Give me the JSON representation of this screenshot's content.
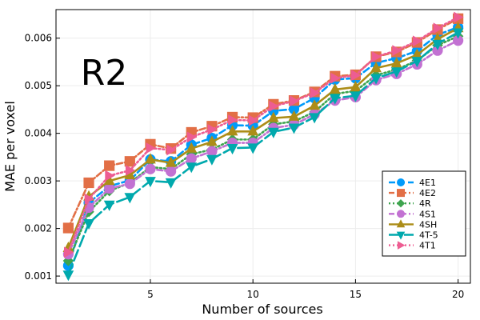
{
  "chart_data": {
    "type": "line",
    "title": "",
    "annotation": "R2",
    "xlabel": "Number of sources",
    "ylabel": "MAE per voxel",
    "xlim": [
      0.4,
      20.6
    ],
    "ylim": [
      0.00085,
      0.0066
    ],
    "x_ticks": [
      5,
      10,
      15,
      20
    ],
    "x_tick_labels": [
      "5",
      "10",
      "15",
      "20"
    ],
    "y_ticks": [
      0.001,
      0.002,
      0.003,
      0.004,
      0.005,
      0.006
    ],
    "y_tick_labels": [
      "0.001",
      "0.002",
      "0.003",
      "0.004",
      "0.005",
      "0.006"
    ],
    "grid": true,
    "legend_position": "bottom-right",
    "x": [
      1,
      2,
      3,
      4,
      5,
      6,
      7,
      8,
      9,
      10,
      11,
      12,
      13,
      14,
      15,
      16,
      17,
      18,
      19,
      20
    ],
    "series": [
      {
        "name": "4E1",
        "color": "#009AFA",
        "marker": "circle",
        "line_style": "dashed",
        "values": [
          0.00122,
          0.00254,
          0.00289,
          0.00301,
          0.00345,
          0.00341,
          0.00376,
          0.0039,
          0.00417,
          0.00416,
          0.00447,
          0.00451,
          0.00474,
          0.00513,
          0.00516,
          0.00548,
          0.00558,
          0.00573,
          0.00607,
          0.00623
        ]
      },
      {
        "name": "4E2",
        "color": "#E26F46",
        "marker": "square",
        "line_style": "dashdot",
        "values": [
          0.00201,
          0.00296,
          0.00332,
          0.00341,
          0.00377,
          0.00368,
          0.00402,
          0.00415,
          0.00434,
          0.00433,
          0.00461,
          0.00469,
          0.00487,
          0.0052,
          0.00523,
          0.00561,
          0.00571,
          0.00591,
          0.00618,
          0.00641
        ]
      },
      {
        "name": "4R",
        "color": "#3EA44E",
        "marker": "diamond",
        "line_style": "dotted",
        "values": [
          0.00132,
          0.00235,
          0.00279,
          0.00296,
          0.00329,
          0.00325,
          0.00356,
          0.00366,
          0.00387,
          0.00387,
          0.00419,
          0.00425,
          0.00445,
          0.00483,
          0.00489,
          0.00522,
          0.00534,
          0.00553,
          0.00585,
          0.00604
        ]
      },
      {
        "name": "4S1",
        "color": "#C271D2",
        "marker": "circle",
        "line_style": "dashdot",
        "values": [
          0.00146,
          0.00244,
          0.00284,
          0.00294,
          0.00325,
          0.0032,
          0.00347,
          0.00362,
          0.0038,
          0.0038,
          0.00411,
          0.00418,
          0.0044,
          0.00469,
          0.00476,
          0.00512,
          0.00525,
          0.00545,
          0.00574,
          0.00595
        ]
      },
      {
        "name": "4SH",
        "color": "#AC8D18",
        "marker": "triangle-up",
        "line_style": "solid",
        "values": [
          0.00159,
          0.00267,
          0.003,
          0.00312,
          0.00345,
          0.00338,
          0.00368,
          0.00382,
          0.00404,
          0.00404,
          0.00432,
          0.00435,
          0.00458,
          0.00492,
          0.00497,
          0.00537,
          0.00547,
          0.00565,
          0.00598,
          0.00621
        ]
      },
      {
        "name": "4T-5",
        "color": "#00A9AD",
        "marker": "triangle-down",
        "line_style": "longdash",
        "values": [
          0.00103,
          0.00211,
          0.0025,
          0.00266,
          0.003,
          0.00297,
          0.0033,
          0.00346,
          0.00369,
          0.0037,
          0.00403,
          0.00412,
          0.00434,
          0.00474,
          0.00479,
          0.00516,
          0.0053,
          0.00552,
          0.00588,
          0.00612
        ]
      },
      {
        "name": "4T1",
        "color": "#ED5D92",
        "marker": "triangle-right",
        "line_style": "dotted",
        "values": [
          0.0015,
          0.00262,
          0.00311,
          0.00322,
          0.00369,
          0.00365,
          0.00392,
          0.00408,
          0.00428,
          0.00427,
          0.00457,
          0.00468,
          0.00485,
          0.00516,
          0.00522,
          0.00561,
          0.00574,
          0.00594,
          0.00621,
          0.00644
        ]
      }
    ]
  }
}
